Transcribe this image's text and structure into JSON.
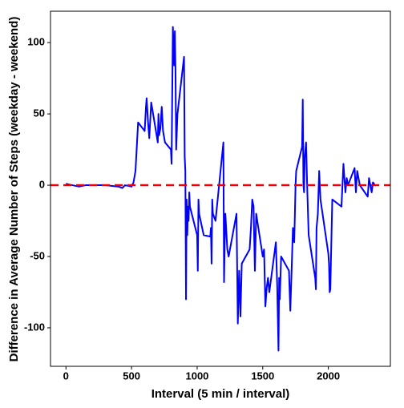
{
  "chart_data": {
    "type": "line",
    "xlabel": "Interval (5 min / interval)",
    "ylabel": "Difference in Average Number of Steps (weekday - weekend)",
    "x": [
      0,
      50,
      100,
      150,
      200,
      300,
      400,
      430,
      450,
      500,
      515,
      530,
      550,
      600,
      610,
      615,
      625,
      635,
      650,
      700,
      705,
      710,
      720,
      730,
      740,
      755,
      800,
      805,
      815,
      825,
      830,
      835,
      840,
      850,
      900,
      905,
      910,
      915,
      920,
      925,
      930,
      935,
      940,
      945,
      1000,
      1005,
      1010,
      1015,
      1050,
      1100,
      1105,
      1110,
      1115,
      1120,
      1140,
      1200,
      1205,
      1210,
      1215,
      1230,
      1240,
      1300,
      1310,
      1320,
      1330,
      1340,
      1400,
      1410,
      1420,
      1430,
      1440,
      1450,
      1500,
      1510,
      1520,
      1530,
      1540,
      1550,
      1600,
      1610,
      1620,
      1625,
      1630,
      1640,
      1700,
      1710,
      1720,
      1730,
      1740,
      1750,
      1755,
      1800,
      1805,
      1810,
      1815,
      1820,
      1830,
      1840,
      1850,
      1900,
      1905,
      1910,
      1920,
      1930,
      1940,
      2000,
      2005,
      2010,
      2015,
      2030,
      2100,
      2110,
      2115,
      2130,
      2140,
      2150,
      2200,
      2210,
      2220,
      2240,
      2300,
      2310,
      2320,
      2330,
      2340,
      2355
    ],
    "values": [
      1,
      0,
      -1,
      0,
      0,
      0,
      -1,
      -2,
      0,
      -1,
      2,
      10,
      44,
      38,
      55,
      61,
      45,
      33,
      58,
      30,
      50,
      35,
      40,
      55,
      38,
      30,
      25,
      15,
      111,
      84,
      108,
      80,
      25,
      50,
      90,
      20,
      10,
      -80,
      -10,
      -35,
      -15,
      -25,
      -5,
      -15,
      -35,
      -60,
      -10,
      -20,
      -35,
      -36,
      -30,
      -55,
      -10,
      -20,
      -25,
      30,
      -68,
      -40,
      -20,
      -45,
      -50,
      -20,
      -97,
      -60,
      -92,
      -55,
      -45,
      -30,
      -10,
      -15,
      -60,
      -20,
      -50,
      -45,
      -85,
      -72,
      -65,
      -75,
      -40,
      -70,
      -116,
      -65,
      -80,
      -50,
      -60,
      -88,
      -60,
      -30,
      -40,
      0,
      10,
      27,
      60,
      0,
      -5,
      20,
      30,
      -5,
      -35,
      -65,
      -73,
      -30,
      -20,
      10,
      -10,
      -48,
      -55,
      -75,
      -73,
      -10,
      -15,
      5,
      15,
      -5,
      5,
      0,
      12,
      -5,
      10,
      0,
      -8,
      5,
      0,
      -5,
      2,
      0
    ],
    "color": "#0000ff",
    "hline": 0,
    "hline_color": "#e8000b",
    "xlim": [
      -117.75,
      2472.75
    ],
    "xticks": [
      0,
      500,
      1000,
      1500,
      2000
    ],
    "ylim": [
      -127,
      122
    ],
    "yticks": [
      -100,
      -50,
      0,
      50,
      100
    ],
    "grid": false
  }
}
